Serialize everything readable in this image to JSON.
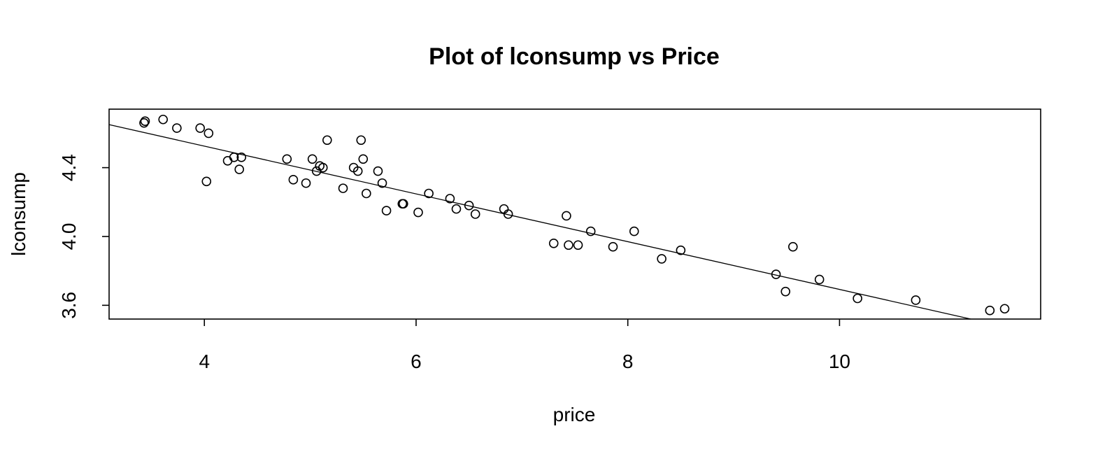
{
  "chart_data": {
    "type": "scatter",
    "title": "Plot of lconsump vs Price",
    "xlabel": "price",
    "ylabel": "lconsump",
    "xlim": [
      3.1,
      11.9
    ],
    "ylim": [
      3.52,
      4.74
    ],
    "xticks": [
      4,
      6,
      8,
      10
    ],
    "yticks": [
      3.6,
      4.0,
      4.4
    ],
    "ytick_labels": [
      "3.6",
      "4.0",
      "4.4"
    ],
    "xtick_labels": [
      "4",
      "6",
      "8",
      "10"
    ],
    "grid": false,
    "regression_line": {
      "x": [
        3.1,
        11.24
      ],
      "y": [
        4.65,
        3.52
      ]
    },
    "points": [
      [
        3.43,
        4.66
      ],
      [
        3.44,
        4.67
      ],
      [
        3.61,
        4.68
      ],
      [
        3.74,
        4.63
      ],
      [
        3.96,
        4.63
      ],
      [
        4.04,
        4.6
      ],
      [
        4.02,
        4.32
      ],
      [
        4.22,
        4.44
      ],
      [
        4.28,
        4.46
      ],
      [
        4.33,
        4.39
      ],
      [
        4.35,
        4.46
      ],
      [
        4.78,
        4.45
      ],
      [
        4.84,
        4.33
      ],
      [
        4.96,
        4.31
      ],
      [
        5.02,
        4.45
      ],
      [
        5.06,
        4.38
      ],
      [
        5.09,
        4.41
      ],
      [
        5.12,
        4.4
      ],
      [
        5.16,
        4.56
      ],
      [
        5.31,
        4.28
      ],
      [
        5.41,
        4.4
      ],
      [
        5.45,
        4.38
      ],
      [
        5.48,
        4.56
      ],
      [
        5.5,
        4.45
      ],
      [
        5.53,
        4.25
      ],
      [
        5.64,
        4.38
      ],
      [
        5.68,
        4.31
      ],
      [
        5.72,
        4.15
      ],
      [
        5.87,
        4.19
      ],
      [
        5.88,
        4.19
      ],
      [
        6.02,
        4.14
      ],
      [
        6.12,
        4.25
      ],
      [
        6.32,
        4.22
      ],
      [
        6.38,
        4.16
      ],
      [
        6.5,
        4.18
      ],
      [
        6.56,
        4.13
      ],
      [
        6.83,
        4.16
      ],
      [
        6.87,
        4.13
      ],
      [
        7.3,
        3.96
      ],
      [
        7.42,
        4.12
      ],
      [
        7.44,
        3.95
      ],
      [
        7.53,
        3.95
      ],
      [
        7.65,
        4.03
      ],
      [
        7.86,
        3.94
      ],
      [
        8.06,
        4.03
      ],
      [
        8.32,
        3.87
      ],
      [
        8.5,
        3.92
      ],
      [
        9.4,
        3.78
      ],
      [
        9.49,
        3.68
      ],
      [
        9.56,
        3.94
      ],
      [
        9.81,
        3.75
      ],
      [
        10.17,
        3.64
      ],
      [
        10.72,
        3.63
      ],
      [
        11.42,
        3.57
      ],
      [
        11.56,
        3.58
      ]
    ]
  }
}
